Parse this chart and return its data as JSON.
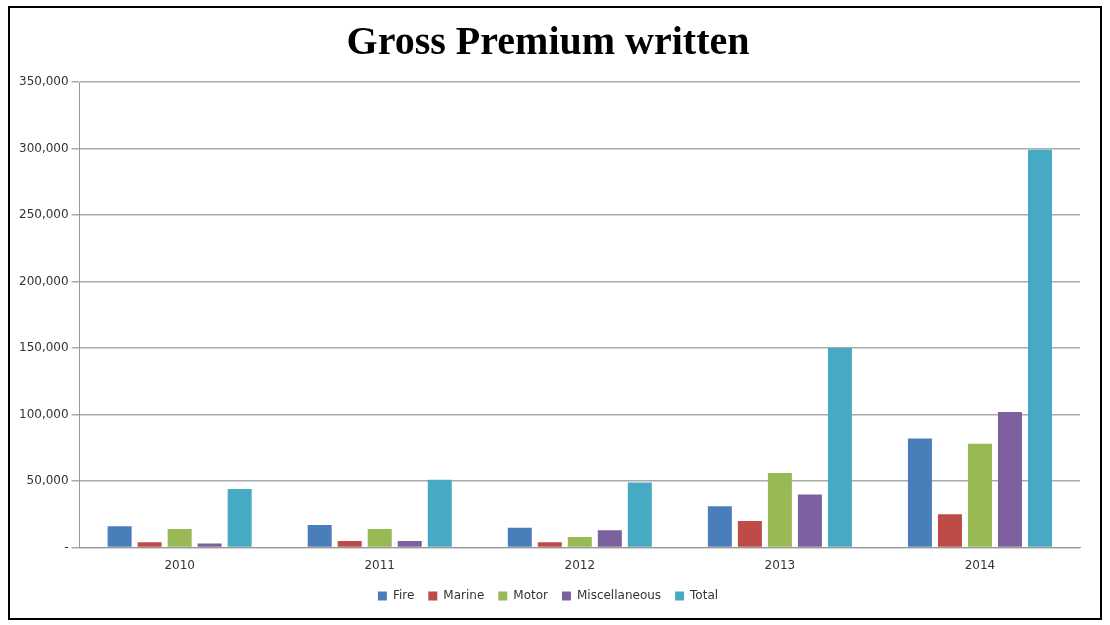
{
  "chart_data": {
    "type": "bar",
    "title": "Gross Premium written",
    "categories": [
      "2010",
      "2011",
      "2012",
      "2013",
      "2014"
    ],
    "series": [
      {
        "name": "Fire",
        "color": "#4a7ebb",
        "values": [
          16000,
          17000,
          15000,
          31000,
          82000
        ]
      },
      {
        "name": "Marine",
        "color": "#be4b48",
        "values": [
          4000,
          5000,
          4000,
          20000,
          25000
        ]
      },
      {
        "name": "Motor",
        "color": "#98b954",
        "values": [
          14000,
          14000,
          8000,
          56000,
          78000
        ]
      },
      {
        "name": "Miscellaneous",
        "color": "#7d60a0",
        "values": [
          3000,
          5000,
          13000,
          40000,
          102000
        ]
      },
      {
        "name": "Total",
        "color": "#46aac5",
        "values": [
          44000,
          51000,
          49000,
          150000,
          299000
        ]
      }
    ],
    "ylim": [
      0,
      350000
    ],
    "yticks": [
      {
        "value": 0,
        "label": "-"
      },
      {
        "value": 50000,
        "label": "50,000"
      },
      {
        "value": 100000,
        "label": "100,000"
      },
      {
        "value": 150000,
        "label": "150,000"
      },
      {
        "value": 200000,
        "label": "200,000"
      },
      {
        "value": 250000,
        "label": "250,000"
      },
      {
        "value": 300000,
        "label": "300,000"
      },
      {
        "value": 350000,
        "label": "350,000"
      }
    ],
    "grid": "y",
    "legend": "bottom"
  }
}
